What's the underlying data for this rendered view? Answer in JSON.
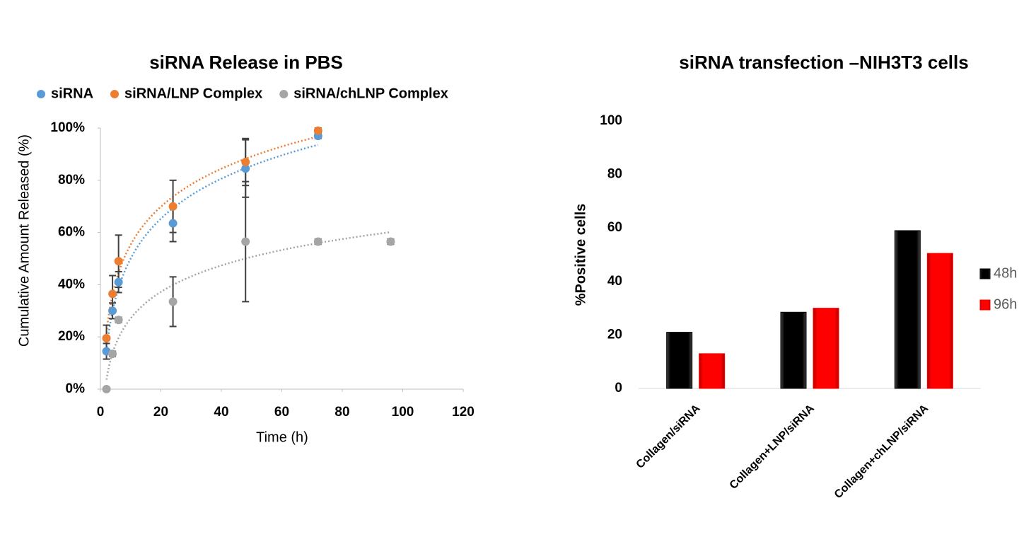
{
  "chart_data": [
    {
      "type": "scatter",
      "title": "siRNA Release in PBS",
      "x_label": "Time (h)",
      "y_label": "Cumulative Amount Released (%)",
      "xlim": [
        0,
        120
      ],
      "xticks": [
        0,
        20,
        40,
        60,
        80,
        100,
        120
      ],
      "ylim": [
        0,
        100
      ],
      "yticks": [
        {
          "value": 0,
          "label": "0%"
        },
        {
          "value": 20,
          "label": "20%"
        },
        {
          "value": 40,
          "label": "40%"
        },
        {
          "value": 60,
          "label": "60%"
        },
        {
          "value": 80,
          "label": "80%"
        },
        {
          "value": 100,
          "label": "100%"
        }
      ],
      "trendline": "log",
      "legend": "top",
      "series": [
        {
          "name": "siRNA",
          "color": "#5b9bd5",
          "x": [
            2,
            4,
            6,
            24,
            48,
            72
          ],
          "values": [
            14.5,
            30,
            41,
            63.5,
            84.5,
            97
          ],
          "errors": [
            3,
            3,
            4,
            7,
            11,
            1
          ]
        },
        {
          "name": "siRNA/LNP Complex",
          "color": "#ed7d31",
          "x": [
            2,
            4,
            6,
            24,
            48,
            72
          ],
          "values": [
            19.5,
            36.5,
            49,
            70,
            87,
            99
          ],
          "errors": [
            5,
            7,
            10,
            10,
            9,
            1
          ]
        },
        {
          "name": "siRNA/chLNP Complex",
          "color": "#a5a5a5",
          "x": [
            2,
            4,
            6,
            24,
            48,
            72,
            96
          ],
          "values": [
            0,
            13.5,
            26.5,
            33.5,
            56.5,
            56.5,
            56.5
          ],
          "errors": [
            0,
            1,
            1,
            9.5,
            23,
            1,
            1
          ]
        }
      ]
    },
    {
      "type": "bar",
      "title": "siRNA transfection –NIH3T3 cells",
      "y_label": "%Positive cells",
      "categories": [
        "Collagen/siRNA",
        "Collagen+LNP/siRNA",
        "Collagen+chLNP/siRNA"
      ],
      "ylim": [
        0,
        100
      ],
      "yticks": [
        0,
        20,
        40,
        60,
        80,
        100
      ],
      "legend": "right",
      "series": [
        {
          "name": "48h",
          "color": "#000000",
          "values": [
            21,
            28.5,
            59
          ]
        },
        {
          "name": "96h",
          "color": "#ff0000",
          "values": [
            13,
            30,
            50.5
          ]
        }
      ]
    }
  ]
}
